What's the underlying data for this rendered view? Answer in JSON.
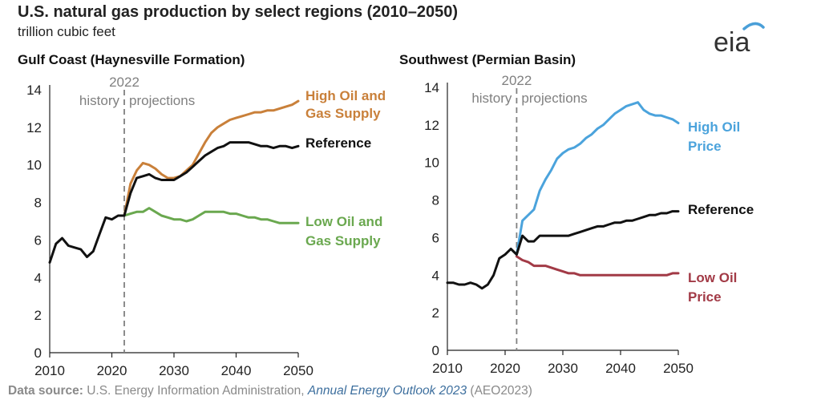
{
  "header": {
    "title": "U.S. natural gas production by select regions (2010–2050)",
    "unit": "trillion cubic feet"
  },
  "logo": {
    "text": "eia",
    "arc_color": "#4a9fd8"
  },
  "source": {
    "prefix": "Data source:",
    "agency": "U.S. Energy Information Administration,",
    "report": "Annual Energy Outlook 2023",
    "suffix": "(AEO2023)"
  },
  "colors": {
    "high": "#c9803a",
    "reference": "#111111",
    "low": "#6aa84f",
    "high_oil_price": "#4ba3dc",
    "low_oil_price": "#a23a46",
    "axis": "#222222",
    "divider": "#808080"
  },
  "chart_data": [
    {
      "type": "line",
      "title": "Gulf Coast (Haynesville Formation)",
      "xlim": [
        2010,
        2050
      ],
      "ylim": [
        0,
        14
      ],
      "x_ticks": [
        "2010",
        "2020",
        "2030",
        "2040",
        "2050"
      ],
      "y_ticks": [
        "0",
        "2",
        "4",
        "6",
        "8",
        "10",
        "12",
        "14"
      ],
      "grid": false,
      "divider": {
        "x": 2022,
        "label": "2022",
        "left_text": "history",
        "right_text": "projections"
      },
      "series": [
        {
          "name": "High Oil and Gas Supply",
          "label_lines": [
            "High Oil and",
            "Gas Supply"
          ],
          "color_key": "high",
          "points": [
            [
              2022,
              7.3
            ],
            [
              2023,
              9.0
            ],
            [
              2024,
              9.7
            ],
            [
              2025,
              10.1
            ],
            [
              2026,
              10.0
            ],
            [
              2027,
              9.8
            ],
            [
              2028,
              9.5
            ],
            [
              2029,
              9.3
            ],
            [
              2030,
              9.3
            ],
            [
              2031,
              9.4
            ],
            [
              2032,
              9.7
            ],
            [
              2033,
              10.0
            ],
            [
              2034,
              10.6
            ],
            [
              2035,
              11.2
            ],
            [
              2036,
              11.7
            ],
            [
              2037,
              12.0
            ],
            [
              2038,
              12.2
            ],
            [
              2039,
              12.4
            ],
            [
              2040,
              12.5
            ],
            [
              2041,
              12.6
            ],
            [
              2042,
              12.7
            ],
            [
              2043,
              12.8
            ],
            [
              2044,
              12.8
            ],
            [
              2045,
              12.9
            ],
            [
              2046,
              12.9
            ],
            [
              2047,
              13.0
            ],
            [
              2048,
              13.1
            ],
            [
              2049,
              13.2
            ],
            [
              2050,
              13.4
            ]
          ]
        },
        {
          "name": "Reference",
          "label_lines": [
            "Reference"
          ],
          "color_key": "reference",
          "points": [
            [
              2010,
              4.8
            ],
            [
              2011,
              5.8
            ],
            [
              2012,
              6.1
            ],
            [
              2013,
              5.7
            ],
            [
              2014,
              5.6
            ],
            [
              2015,
              5.5
            ],
            [
              2016,
              5.1
            ],
            [
              2017,
              5.4
            ],
            [
              2018,
              6.3
            ],
            [
              2019,
              7.2
            ],
            [
              2020,
              7.1
            ],
            [
              2021,
              7.3
            ],
            [
              2022,
              7.3
            ],
            [
              2023,
              8.5
            ],
            [
              2024,
              9.3
            ],
            [
              2025,
              9.4
            ],
            [
              2026,
              9.5
            ],
            [
              2027,
              9.3
            ],
            [
              2028,
              9.2
            ],
            [
              2029,
              9.2
            ],
            [
              2030,
              9.2
            ],
            [
              2031,
              9.4
            ],
            [
              2032,
              9.6
            ],
            [
              2033,
              9.9
            ],
            [
              2034,
              10.2
            ],
            [
              2035,
              10.5
            ],
            [
              2036,
              10.7
            ],
            [
              2037,
              10.9
            ],
            [
              2038,
              11.0
            ],
            [
              2039,
              11.2
            ],
            [
              2040,
              11.2
            ],
            [
              2041,
              11.2
            ],
            [
              2042,
              11.2
            ],
            [
              2043,
              11.1
            ],
            [
              2044,
              11.0
            ],
            [
              2045,
              11.0
            ],
            [
              2046,
              10.9
            ],
            [
              2047,
              11.0
            ],
            [
              2048,
              11.0
            ],
            [
              2049,
              10.9
            ],
            [
              2050,
              11.0
            ]
          ]
        },
        {
          "name": "Low Oil and Gas Supply",
          "label_lines": [
            "Low Oil and",
            "Gas Supply"
          ],
          "color_key": "low",
          "points": [
            [
              2022,
              7.3
            ],
            [
              2023,
              7.4
            ],
            [
              2024,
              7.5
            ],
            [
              2025,
              7.5
            ],
            [
              2026,
              7.7
            ],
            [
              2027,
              7.5
            ],
            [
              2028,
              7.3
            ],
            [
              2029,
              7.2
            ],
            [
              2030,
              7.1
            ],
            [
              2031,
              7.1
            ],
            [
              2032,
              7.0
            ],
            [
              2033,
              7.1
            ],
            [
              2034,
              7.3
            ],
            [
              2035,
              7.5
            ],
            [
              2036,
              7.5
            ],
            [
              2037,
              7.5
            ],
            [
              2038,
              7.5
            ],
            [
              2039,
              7.4
            ],
            [
              2040,
              7.4
            ],
            [
              2041,
              7.3
            ],
            [
              2042,
              7.2
            ],
            [
              2043,
              7.2
            ],
            [
              2044,
              7.1
            ],
            [
              2045,
              7.1
            ],
            [
              2046,
              7.0
            ],
            [
              2047,
              6.9
            ],
            [
              2048,
              6.9
            ],
            [
              2049,
              6.9
            ],
            [
              2050,
              6.9
            ]
          ]
        }
      ]
    },
    {
      "type": "line",
      "title": "Southwest (Permian Basin)",
      "xlim": [
        2010,
        2050
      ],
      "ylim": [
        0,
        14
      ],
      "x_ticks": [
        "2010",
        "2020",
        "2030",
        "2040",
        "2050"
      ],
      "y_ticks": [
        "0",
        "2",
        "4",
        "6",
        "8",
        "10",
        "12",
        "14"
      ],
      "grid": false,
      "divider": {
        "x": 2022,
        "label": "2022",
        "left_text": "history",
        "right_text": "projections"
      },
      "series": [
        {
          "name": "High Oil Price",
          "label_lines": [
            "High Oil",
            "Price"
          ],
          "color_key": "high_oil_price",
          "points": [
            [
              2022,
              5.1
            ],
            [
              2023,
              6.9
            ],
            [
              2024,
              7.2
            ],
            [
              2025,
              7.5
            ],
            [
              2026,
              8.5
            ],
            [
              2027,
              9.1
            ],
            [
              2028,
              9.6
            ],
            [
              2029,
              10.2
            ],
            [
              2030,
              10.5
            ],
            [
              2031,
              10.7
            ],
            [
              2032,
              10.8
            ],
            [
              2033,
              11.0
            ],
            [
              2034,
              11.3
            ],
            [
              2035,
              11.5
            ],
            [
              2036,
              11.8
            ],
            [
              2037,
              12.0
            ],
            [
              2038,
              12.3
            ],
            [
              2039,
              12.6
            ],
            [
              2040,
              12.8
            ],
            [
              2041,
              13.0
            ],
            [
              2042,
              13.1
            ],
            [
              2043,
              13.2
            ],
            [
              2044,
              12.8
            ],
            [
              2045,
              12.6
            ],
            [
              2046,
              12.5
            ],
            [
              2047,
              12.5
            ],
            [
              2048,
              12.4
            ],
            [
              2049,
              12.3
            ],
            [
              2050,
              12.1
            ]
          ]
        },
        {
          "name": "Reference",
          "label_lines": [
            "Reference"
          ],
          "color_key": "reference",
          "points": [
            [
              2010,
              3.6
            ],
            [
              2011,
              3.6
            ],
            [
              2012,
              3.5
            ],
            [
              2013,
              3.5
            ],
            [
              2014,
              3.6
            ],
            [
              2015,
              3.5
            ],
            [
              2016,
              3.3
            ],
            [
              2017,
              3.5
            ],
            [
              2018,
              4.0
            ],
            [
              2019,
              4.9
            ],
            [
              2020,
              5.1
            ],
            [
              2021,
              5.4
            ],
            [
              2022,
              5.1
            ],
            [
              2023,
              6.1
            ],
            [
              2024,
              5.8
            ],
            [
              2025,
              5.8
            ],
            [
              2026,
              6.1
            ],
            [
              2027,
              6.1
            ],
            [
              2028,
              6.1
            ],
            [
              2029,
              6.1
            ],
            [
              2030,
              6.1
            ],
            [
              2031,
              6.1
            ],
            [
              2032,
              6.2
            ],
            [
              2033,
              6.3
            ],
            [
              2034,
              6.4
            ],
            [
              2035,
              6.5
            ],
            [
              2036,
              6.6
            ],
            [
              2037,
              6.6
            ],
            [
              2038,
              6.7
            ],
            [
              2039,
              6.8
            ],
            [
              2040,
              6.8
            ],
            [
              2041,
              6.9
            ],
            [
              2042,
              6.9
            ],
            [
              2043,
              7.0
            ],
            [
              2044,
              7.1
            ],
            [
              2045,
              7.2
            ],
            [
              2046,
              7.2
            ],
            [
              2047,
              7.3
            ],
            [
              2048,
              7.3
            ],
            [
              2049,
              7.4
            ],
            [
              2050,
              7.4
            ]
          ]
        },
        {
          "name": "Low Oil Price",
          "label_lines": [
            "Low Oil",
            "Price"
          ],
          "color_key": "low_oil_price",
          "points": [
            [
              2022,
              5.0
            ],
            [
              2023,
              4.8
            ],
            [
              2024,
              4.7
            ],
            [
              2025,
              4.5
            ],
            [
              2026,
              4.5
            ],
            [
              2027,
              4.5
            ],
            [
              2028,
              4.4
            ],
            [
              2029,
              4.3
            ],
            [
              2030,
              4.2
            ],
            [
              2031,
              4.1
            ],
            [
              2032,
              4.1
            ],
            [
              2033,
              4.0
            ],
            [
              2034,
              4.0
            ],
            [
              2035,
              4.0
            ],
            [
              2036,
              4.0
            ],
            [
              2037,
              4.0
            ],
            [
              2038,
              4.0
            ],
            [
              2039,
              4.0
            ],
            [
              2040,
              4.0
            ],
            [
              2041,
              4.0
            ],
            [
              2042,
              4.0
            ],
            [
              2043,
              4.0
            ],
            [
              2044,
              4.0
            ],
            [
              2045,
              4.0
            ],
            [
              2046,
              4.0
            ],
            [
              2047,
              4.0
            ],
            [
              2048,
              4.0
            ],
            [
              2049,
              4.1
            ],
            [
              2050,
              4.1
            ]
          ]
        }
      ]
    }
  ]
}
